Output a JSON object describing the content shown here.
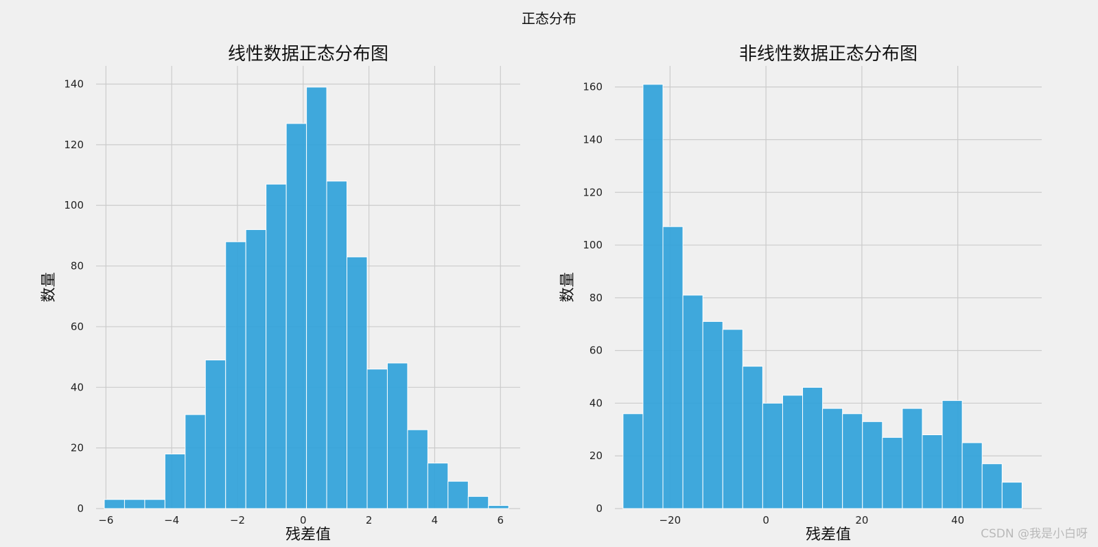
{
  "figure": {
    "suptitle": "正态分布",
    "watermark": "CSDN @我是小白呀",
    "bar_color": "#30a2da",
    "background": "#f0f0f0",
    "grid_color": "#cbcbcb"
  },
  "chart_data": [
    {
      "type": "bar",
      "title": "线性数据正态分布图",
      "xlabel": "残差值",
      "ylabel": "数量",
      "xlim": [
        -6.3,
        6.6
      ],
      "ylim": [
        0,
        146
      ],
      "xticks": [
        -6,
        -4,
        -2,
        0,
        2,
        4,
        6
      ],
      "xtick_labels": [
        "−6",
        "−4",
        "−2",
        "0",
        "2",
        "4",
        "6"
      ],
      "yticks": [
        0,
        20,
        40,
        60,
        80,
        100,
        120,
        140
      ],
      "bin_start": -6.05,
      "bin_width": 0.615,
      "values": [
        3,
        3,
        3,
        18,
        31,
        49,
        88,
        92,
        107,
        127,
        139,
        108,
        83,
        46,
        48,
        26,
        15,
        9,
        4,
        1
      ],
      "grid": true
    },
    {
      "type": "bar",
      "title": "非线性数据正态分布图",
      "xlabel": "残差值",
      "ylabel": "数量",
      "xlim": [
        -31.5,
        57.5
      ],
      "ylim": [
        0,
        168
      ],
      "xticks": [
        -20,
        0,
        20,
        40
      ],
      "xtick_labels": [
        "−20",
        "0",
        "20",
        "40"
      ],
      "yticks": [
        0,
        20,
        40,
        60,
        80,
        100,
        120,
        140,
        160
      ],
      "bin_start": -29.8,
      "bin_width": 4.16,
      "values": [
        36,
        161,
        107,
        81,
        71,
        68,
        54,
        40,
        43,
        46,
        38,
        36,
        33,
        27,
        38,
        28,
        41,
        25,
        17,
        10
      ],
      "grid": true
    }
  ]
}
